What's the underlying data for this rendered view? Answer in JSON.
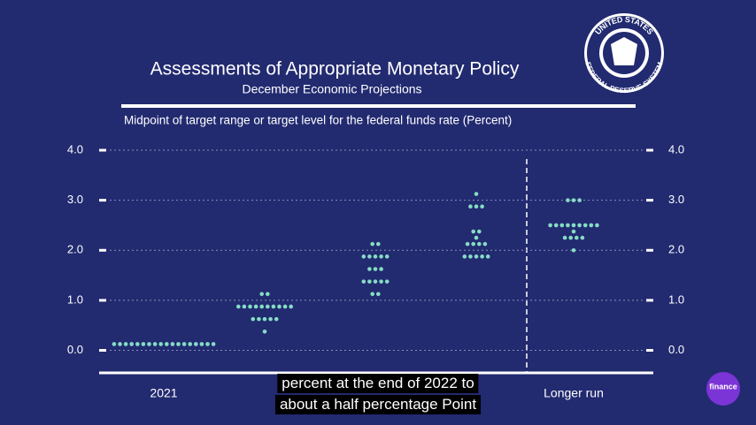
{
  "chart_data": {
    "type": "dotplot",
    "title": "Assessments of Appropriate Monetary Policy",
    "subtitle": "December Economic Projections",
    "y_label": "Midpoint of target range or target level for the federal funds rate (Percent)",
    "categories": [
      "2021",
      null,
      null,
      null,
      "Longer run"
    ],
    "values": [
      [
        0.125,
        0.125,
        0.125,
        0.125,
        0.125,
        0.125,
        0.125,
        0.125,
        0.125,
        0.125,
        0.125,
        0.125,
        0.125,
        0.125,
        0.125,
        0.125,
        0.125,
        0.125
      ],
      [
        1.125,
        1.125,
        0.875,
        0.875,
        0.875,
        0.875,
        0.875,
        0.875,
        0.875,
        0.875,
        0.875,
        0.875,
        0.625,
        0.625,
        0.625,
        0.625,
        0.625,
        0.375
      ],
      [
        2.125,
        2.125,
        1.875,
        1.875,
        1.875,
        1.875,
        1.875,
        1.625,
        1.625,
        1.625,
        1.375,
        1.375,
        1.375,
        1.375,
        1.375,
        1.125,
        1.125
      ],
      [
        3.125,
        2.875,
        2.875,
        2.875,
        2.375,
        2.375,
        2.25,
        2.125,
        2.125,
        2.125,
        2.125,
        1.875,
        1.875,
        1.875,
        1.875,
        1.875
      ],
      [
        3,
        3,
        3,
        2.5,
        2.5,
        2.5,
        2.5,
        2.5,
        2.5,
        2.5,
        2.5,
        2.5,
        2.375,
        2.25,
        2.25,
        2.25,
        2.25,
        2
      ]
    ],
    "color": "#86dcc4",
    "ylim": [
      -0.45,
      4.3
    ],
    "yticks": [
      {
        "value": 0,
        "label": "0.0"
      },
      {
        "value": 1,
        "label": "1.0"
      },
      {
        "value": 2,
        "label": "2.0"
      },
      {
        "value": 3,
        "label": "3.0"
      },
      {
        "value": 4,
        "label": "4.0"
      }
    ],
    "grid": true
  },
  "seal": {
    "top": "UNITED STATES",
    "bottom": "FEDERAL RESERVE SYSTEM"
  },
  "caption": [
    "percent at the end of 2022 to",
    "about a half percentage Point"
  ],
  "channel_logo": "finance"
}
